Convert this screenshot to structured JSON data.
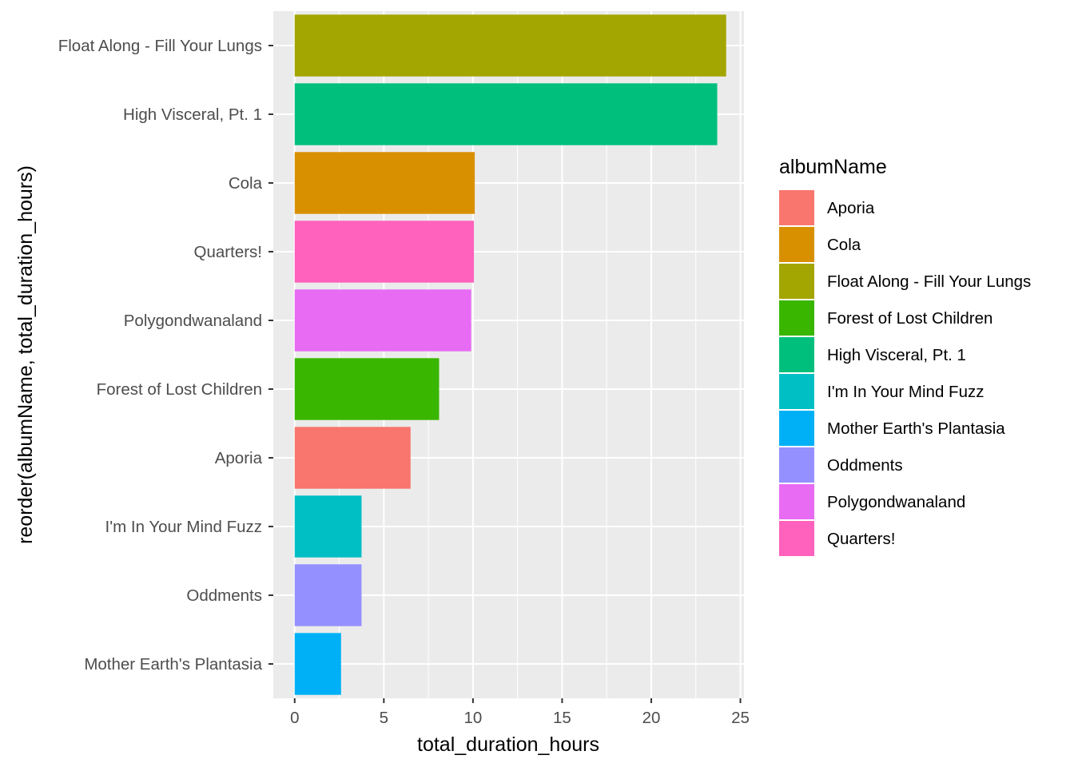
{
  "chart_data": {
    "type": "bar",
    "orientation": "horizontal",
    "xlabel": "total_duration_hours",
    "ylabel": "reorder(albumName, total_duration_hours)",
    "xlim": [
      -1.2,
      25.2
    ],
    "x_ticks": [
      0,
      5,
      10,
      15,
      20,
      25
    ],
    "grid": true,
    "legend_position": "right",
    "legend_title": "albumName",
    "categories": [
      "Float Along - Fill Your Lungs",
      "High Visceral, Pt. 1",
      "Cola",
      "Quarters!",
      "Polygondwanaland",
      "Forest of Lost Children",
      "Aporia",
      "I'm In Your Mind Fuzz",
      "Oddments",
      "Mother Earth's Plantasia"
    ],
    "values": [
      24.2,
      23.7,
      10.1,
      10.05,
      9.9,
      8.1,
      6.5,
      3.75,
      3.75,
      2.6
    ],
    "colors": {
      "Aporia": "#F8766D",
      "Cola": "#D89000",
      "Float Along - Fill Your Lungs": "#A3A500",
      "Forest of Lost Children": "#39B600",
      "High Visceral, Pt. 1": "#00BF7D",
      "I'm In Your Mind Fuzz": "#00BFC4",
      "Mother Earth's Plantasia": "#00B0F6",
      "Oddments": "#9590FF",
      "Polygondwanaland": "#E76BF3",
      "Quarters!": "#FF62BC"
    },
    "legend_items": [
      "Aporia",
      "Cola",
      "Float Along - Fill Your Lungs",
      "Forest of Lost Children",
      "High Visceral, Pt. 1",
      "I'm In Your Mind Fuzz",
      "Mother Earth's Plantasia",
      "Oddments",
      "Polygondwanaland",
      "Quarters!"
    ]
  }
}
